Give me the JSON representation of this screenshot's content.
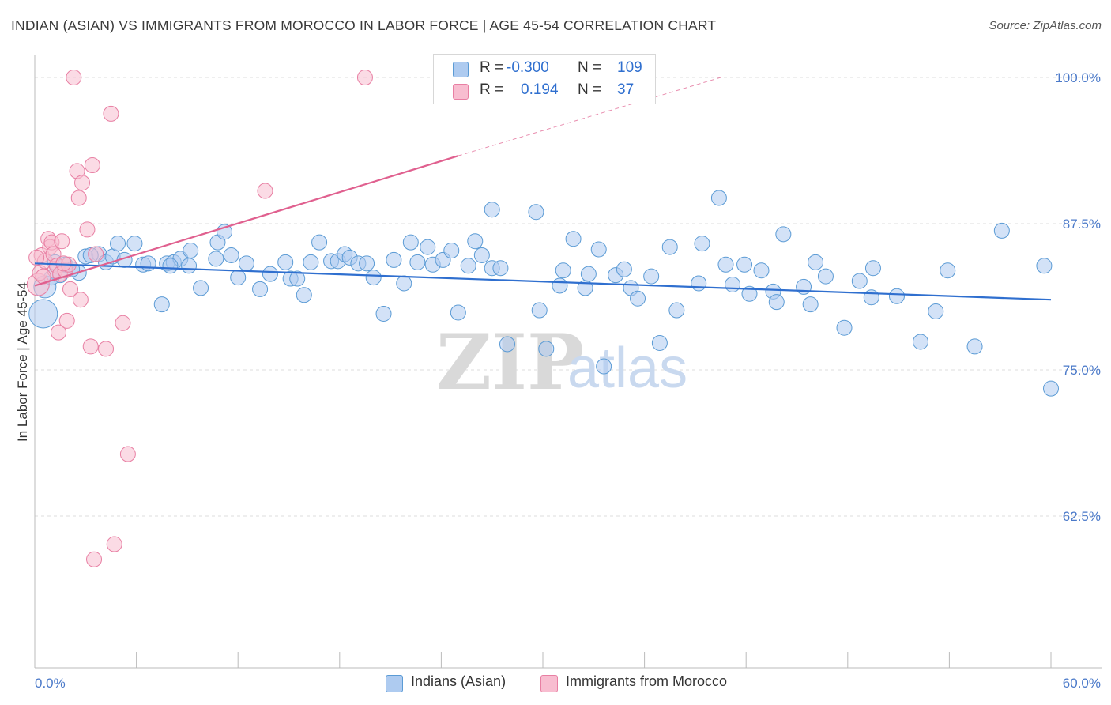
{
  "title": "INDIAN (ASIAN) VS IMMIGRANTS FROM MOROCCO IN LABOR FORCE | AGE 45-54 CORRELATION CHART",
  "source": "Source: ZipAtlas.com",
  "watermark": {
    "zip": "ZIP",
    "atlas": "atlas"
  },
  "colors": {
    "blue": "#5b9bd5",
    "blue_fill": "#aecbf0",
    "blue_line": "#2f6fcf",
    "pink": "#e87fa3",
    "pink_fill": "#f8bdd0",
    "pink_line": "#e0608f"
  },
  "legend": {
    "rows": [
      {
        "r_label": "R =",
        "r_value": "-0.300",
        "n_label": "N =",
        "n_value": "109"
      },
      {
        "r_label": "R =",
        "r_value": "0.194",
        "n_label": "N =",
        "n_value": "37"
      }
    ]
  },
  "bottom_legend": {
    "series1": "Indians (Asian)",
    "series2": "Immigrants from Morocco"
  },
  "chart_data": {
    "type": "scatter",
    "title": "INDIAN (ASIAN) VS IMMIGRANTS FROM MOROCCO IN LABOR FORCE | AGE 45-54 CORRELATION CHART",
    "xlabel": "",
    "ylabel": "In Labor Force | Age 45-54",
    "xlim": [
      0,
      60
    ],
    "ylim": [
      50,
      102
    ],
    "x_tick_labels": [
      "0.0%",
      "60.0%"
    ],
    "y_ticks": [
      62.5,
      75.0,
      87.5,
      100.0
    ],
    "y_tick_labels": [
      "62.5%",
      "75.0%",
      "87.5%",
      "100.0%"
    ],
    "grid": true,
    "series": [
      {
        "name": "Indians (Asian)",
        "color": "#5b9bd5",
        "trend": {
          "x0": 0,
          "y0": 84.1,
          "x1": 60,
          "y1": 81.0
        },
        "points": [
          [
            0.5,
            79.8,
            3
          ],
          [
            0.6,
            82.1,
            2
          ],
          [
            1.2,
            84.2,
            1
          ],
          [
            1.5,
            83.1,
            1
          ],
          [
            1.8,
            84.0,
            1
          ],
          [
            2.6,
            83.3,
            1
          ],
          [
            3.0,
            84.7,
            1
          ],
          [
            3.8,
            84.9,
            1
          ],
          [
            4.2,
            84.2,
            1
          ],
          [
            4.6,
            84.7,
            1
          ],
          [
            4.9,
            85.8,
            1
          ],
          [
            5.3,
            84.4,
            1
          ],
          [
            5.9,
            85.8,
            1
          ],
          [
            6.4,
            84.0,
            1
          ],
          [
            6.7,
            84.1,
            1
          ],
          [
            7.5,
            80.6,
            1
          ],
          [
            7.8,
            84.1,
            1
          ],
          [
            8.2,
            84.2,
            1
          ],
          [
            8.6,
            84.5,
            1
          ],
          [
            9.1,
            83.9,
            1
          ],
          [
            9.2,
            85.2,
            1
          ],
          [
            9.8,
            82.0,
            1
          ],
          [
            10.7,
            84.5,
            1
          ],
          [
            10.8,
            85.9,
            1
          ],
          [
            11.2,
            86.8,
            1
          ],
          [
            11.6,
            84.8,
            1
          ],
          [
            12.0,
            82.9,
            1
          ],
          [
            12.5,
            84.1,
            1
          ],
          [
            13.3,
            81.9,
            1
          ],
          [
            13.9,
            83.2,
            1
          ],
          [
            14.8,
            84.2,
            1
          ],
          [
            15.1,
            82.8,
            1
          ],
          [
            15.5,
            82.8,
            1
          ],
          [
            15.9,
            81.4,
            1
          ],
          [
            16.3,
            84.2,
            1
          ],
          [
            16.8,
            85.9,
            1
          ],
          [
            17.5,
            84.3,
            1
          ],
          [
            17.9,
            84.3,
            1
          ],
          [
            18.3,
            84.9,
            1
          ],
          [
            18.6,
            84.6,
            1
          ],
          [
            19.1,
            84.1,
            1
          ],
          [
            19.6,
            84.1,
            1
          ],
          [
            20.0,
            82.9,
            1
          ],
          [
            20.6,
            79.8,
            1
          ],
          [
            21.2,
            84.4,
            1
          ],
          [
            21.8,
            82.4,
            1
          ],
          [
            22.2,
            85.9,
            1
          ],
          [
            22.6,
            84.2,
            1
          ],
          [
            23.2,
            85.5,
            1
          ],
          [
            23.5,
            84.0,
            1
          ],
          [
            24.1,
            84.4,
            1
          ],
          [
            24.6,
            85.2,
            1
          ],
          [
            25.0,
            79.9,
            1
          ],
          [
            25.6,
            83.9,
            1
          ],
          [
            26.0,
            86.0,
            1
          ],
          [
            26.4,
            84.8,
            1
          ],
          [
            27.0,
            83.7,
            1
          ],
          [
            27.5,
            83.7,
            1
          ],
          [
            27.0,
            88.7,
            1
          ],
          [
            29.6,
            88.5,
            1
          ],
          [
            27.9,
            77.2,
            1
          ],
          [
            29.8,
            80.1,
            1
          ],
          [
            30.2,
            76.8,
            1
          ],
          [
            31.0,
            82.2,
            1
          ],
          [
            31.2,
            83.5,
            1
          ],
          [
            31.8,
            86.2,
            1
          ],
          [
            32.5,
            82.0,
            1
          ],
          [
            32.7,
            83.2,
            1
          ],
          [
            33.3,
            85.3,
            1
          ],
          [
            33.6,
            75.3,
            1
          ],
          [
            34.3,
            83.1,
            1
          ],
          [
            34.8,
            83.6,
            1
          ],
          [
            35.2,
            82.0,
            1
          ],
          [
            35.6,
            81.1,
            1
          ],
          [
            36.4,
            83.0,
            1
          ],
          [
            36.9,
            77.3,
            1
          ],
          [
            37.5,
            85.5,
            1
          ],
          [
            37.9,
            80.1,
            1
          ],
          [
            39.2,
            82.4,
            1
          ],
          [
            39.4,
            85.8,
            1
          ],
          [
            40.4,
            89.7,
            1
          ],
          [
            40.8,
            84.0,
            1
          ],
          [
            41.2,
            82.3,
            1
          ],
          [
            41.9,
            84.0,
            1
          ],
          [
            42.2,
            81.5,
            1
          ],
          [
            42.9,
            83.5,
            1
          ],
          [
            43.6,
            81.7,
            1
          ],
          [
            43.8,
            80.8,
            1
          ],
          [
            44.2,
            86.6,
            1
          ],
          [
            45.4,
            82.1,
            1
          ],
          [
            45.8,
            80.6,
            1
          ],
          [
            46.1,
            84.2,
            1
          ],
          [
            46.7,
            83.0,
            1
          ],
          [
            47.8,
            78.6,
            1
          ],
          [
            48.7,
            82.6,
            1
          ],
          [
            49.4,
            81.2,
            1
          ],
          [
            49.5,
            83.7,
            1
          ],
          [
            50.9,
            81.3,
            1
          ],
          [
            52.3,
            77.4,
            1
          ],
          [
            53.2,
            80.0,
            1
          ],
          [
            53.9,
            83.5,
            1
          ],
          [
            55.5,
            77.0,
            1
          ],
          [
            57.1,
            86.9,
            1
          ],
          [
            59.6,
            83.9,
            1
          ],
          [
            60.0,
            73.4,
            1
          ],
          [
            1.0,
            82.9,
            1
          ],
          [
            2.2,
            83.6,
            1
          ],
          [
            3.3,
            84.8,
            1
          ],
          [
            8.0,
            83.9,
            1
          ]
        ]
      },
      {
        "name": "Immigrants from Morocco",
        "color": "#e87fa3",
        "trend": {
          "x0": 0,
          "y0": 82.2,
          "x1": 25,
          "y1": 93.3,
          "dash_x1": 40.5,
          "dash_y1": 100.0
        },
        "points": [
          [
            0.2,
            82.3,
            2
          ],
          [
            0.3,
            83.3,
            1
          ],
          [
            0.4,
            84.8,
            1
          ],
          [
            0.6,
            84.3,
            1
          ],
          [
            0.8,
            86.2,
            1
          ],
          [
            0.9,
            85.5,
            1
          ],
          [
            1.0,
            85.9,
            1
          ],
          [
            1.1,
            84.9,
            1
          ],
          [
            1.2,
            83.5,
            1
          ],
          [
            1.3,
            83.9,
            1
          ],
          [
            1.4,
            78.2,
            1
          ],
          [
            1.5,
            83.2,
            1
          ],
          [
            1.6,
            86.0,
            1
          ],
          [
            1.8,
            83.5,
            1
          ],
          [
            1.9,
            79.2,
            1
          ],
          [
            2.0,
            84.0,
            1
          ],
          [
            2.1,
            81.9,
            1
          ],
          [
            2.3,
            100.0,
            1
          ],
          [
            2.5,
            92.0,
            1
          ],
          [
            2.6,
            89.7,
            1
          ],
          [
            2.7,
            81.0,
            1
          ],
          [
            2.8,
            91.0,
            1
          ],
          [
            3.1,
            87.0,
            1
          ],
          [
            3.3,
            77.0,
            1
          ],
          [
            3.4,
            92.5,
            1
          ],
          [
            3.5,
            58.8,
            1
          ],
          [
            3.6,
            84.9,
            1
          ],
          [
            4.2,
            76.8,
            1
          ],
          [
            4.5,
            96.9,
            1
          ],
          [
            4.7,
            60.1,
            1
          ],
          [
            5.2,
            79.0,
            1
          ],
          [
            5.5,
            67.8,
            1
          ],
          [
            13.6,
            90.3,
            1
          ],
          [
            19.5,
            100.0,
            1
          ],
          [
            0.1,
            84.6,
            1
          ],
          [
            1.7,
            84.1,
            1
          ],
          [
            0.5,
            83.0,
            1
          ]
        ]
      }
    ]
  }
}
